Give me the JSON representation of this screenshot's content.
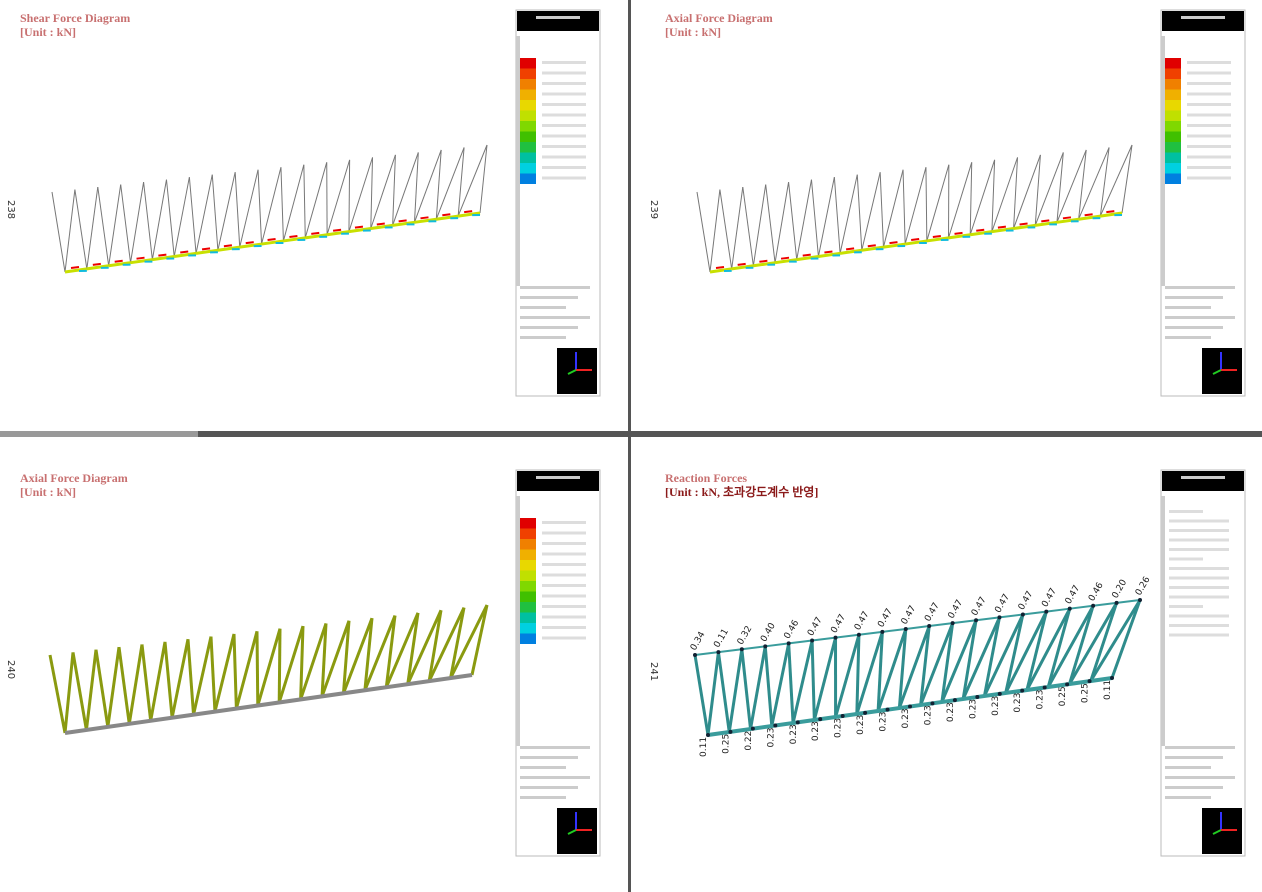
{
  "panes": [
    {
      "title": "Shear Force Diagram",
      "unit": "[Unit : kN]",
      "id": "238"
    },
    {
      "title": "Axial Force Diagram",
      "unit": "[Unit : kN]",
      "id": "239"
    },
    {
      "title": "Axial Force Diagram",
      "unit": "[Unit : kN]",
      "id": "240"
    },
    {
      "title": "Reaction Forces",
      "unit": "[Unit : kN, 초과강도계수 반영]",
      "id": "241"
    }
  ],
  "reactions": {
    "top": [
      "0.34",
      "0.11",
      "0.32",
      "0.40",
      "0.46",
      "0.47",
      "0.47",
      "0.47",
      "0.47",
      "0.47",
      "0.47",
      "0.47",
      "0.47",
      "0.47",
      "0.47",
      "0.47",
      "0.47",
      "0.46",
      "0.20",
      "0.26"
    ],
    "bottom": [
      "0.11",
      "0.25",
      "0.22",
      "0.23",
      "0.23",
      "0.23",
      "0.23",
      "0.23",
      "0.23",
      "0.23",
      "0.23",
      "0.23",
      "0.23",
      "0.23",
      "0.23",
      "0.23",
      "0.25",
      "0.25",
      "0.11"
    ]
  }
}
